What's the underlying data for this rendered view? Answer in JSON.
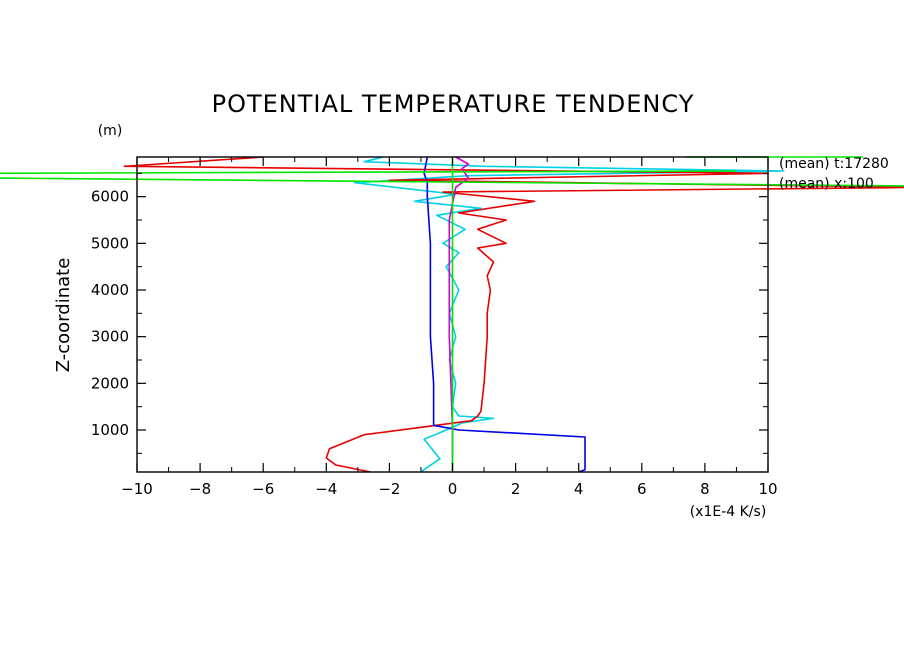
{
  "chart_data": {
    "type": "line",
    "title": "POTENTIAL TEMPERATURE TENDENCY",
    "ylabel": "Z-coordinate",
    "yunit": "(m)",
    "xunit": "(x1E-4 K/s)",
    "xlim": [
      -10,
      10
    ],
    "ylim": [
      100,
      6850
    ],
    "x_ticks": [
      -10,
      -8,
      -6,
      -4,
      -2,
      0,
      2,
      4,
      6,
      8,
      10
    ],
    "x_tick_labels": [
      "−10",
      "−8",
      "−6",
      "−4",
      "−2",
      "0",
      "2",
      "4",
      "6",
      "8",
      "10"
    ],
    "y_ticks": [
      1000,
      2000,
      3000,
      4000,
      5000,
      6000
    ],
    "y_tick_labels": [
      "1000",
      "2000",
      "3000",
      "4000",
      "5000",
      "6000"
    ],
    "annotations": [
      "(mean) t:17280",
      "(mean) x:100"
    ],
    "series": [
      {
        "color": "#00d2e6",
        "points": [
          [
            -1.0,
            100
          ],
          [
            -0.8,
            200
          ],
          [
            -0.4,
            380
          ],
          [
            -0.9,
            800
          ],
          [
            -0.2,
            1000
          ],
          [
            0.3,
            1150
          ],
          [
            1.3,
            1250
          ],
          [
            0.2,
            1300
          ],
          [
            0.0,
            1500
          ],
          [
            0.1,
            2000
          ],
          [
            -0.1,
            2500
          ],
          [
            0.1,
            3000
          ],
          [
            -0.1,
            3500
          ],
          [
            0.2,
            4000
          ],
          [
            -0.2,
            4500
          ],
          [
            0.2,
            4800
          ],
          [
            -0.3,
            5000
          ],
          [
            0.4,
            5300
          ],
          [
            -0.5,
            5600
          ],
          [
            0.9,
            5750
          ],
          [
            -1.2,
            5900
          ],
          [
            0.1,
            6050
          ],
          [
            -3.1,
            6300
          ],
          [
            0.5,
            6450
          ],
          [
            10.5,
            6550
          ],
          [
            1.0,
            6650
          ],
          [
            -2.8,
            6750
          ],
          [
            -2.2,
            6850
          ]
        ]
      },
      {
        "color": "#e60000",
        "points": [
          [
            -2.6,
            100
          ],
          [
            -3.7,
            250
          ],
          [
            -4.0,
            400
          ],
          [
            -3.9,
            600
          ],
          [
            -2.8,
            900
          ],
          [
            0.6,
            1200
          ],
          [
            0.8,
            1300
          ],
          [
            0.9,
            1400
          ],
          [
            1.0,
            2000
          ],
          [
            1.1,
            3000
          ],
          [
            1.1,
            3500
          ],
          [
            1.2,
            4000
          ],
          [
            1.1,
            4300
          ],
          [
            1.3,
            4600
          ],
          [
            0.8,
            4900
          ],
          [
            1.7,
            5000
          ],
          [
            0.8,
            5300
          ],
          [
            1.7,
            5500
          ],
          [
            0.2,
            5650
          ],
          [
            2.6,
            5900
          ],
          [
            -0.3,
            6100
          ],
          [
            15.0,
            6200
          ],
          [
            -2.0,
            6350
          ],
          [
            10.0,
            6500
          ],
          [
            -10.4,
            6650
          ],
          [
            -6.0,
            6850
          ]
        ]
      },
      {
        "color": "#0000e6",
        "points": [
          [
            4.0,
            100
          ],
          [
            4.2,
            150
          ],
          [
            4.2,
            850
          ],
          [
            0.2,
            1000
          ],
          [
            -0.6,
            1100
          ],
          [
            -0.6,
            2000
          ],
          [
            -0.7,
            3000
          ],
          [
            -0.7,
            4000
          ],
          [
            -0.7,
            5000
          ],
          [
            -0.8,
            6000
          ],
          [
            -0.8,
            6300
          ],
          [
            -0.9,
            6500
          ],
          [
            -0.8,
            6850
          ]
        ]
      },
      {
        "color": "#d200d2",
        "points": [
          [
            0.0,
            100
          ],
          [
            0.0,
            1000
          ],
          [
            -0.1,
            3000
          ],
          [
            -0.1,
            5500
          ],
          [
            0.1,
            6200
          ],
          [
            0.5,
            6400
          ],
          [
            0.3,
            6600
          ],
          [
            0.5,
            6700
          ],
          [
            0.1,
            6850
          ]
        ]
      },
      {
        "color": "#00e600",
        "points": [
          [
            0.0,
            100
          ],
          [
            0.0,
            6850
          ]
        ],
        "extra_lines": [
          [
            [
              -14.7,
              6500
            ],
            [
              9.0,
              6550
            ]
          ],
          [
            [
              -14.7,
              6400
            ],
            [
              16.0,
              6220
            ]
          ],
          [
            [
              7.4,
              6850
            ],
            [
              13.0,
              6850
            ]
          ]
        ]
      }
    ]
  }
}
